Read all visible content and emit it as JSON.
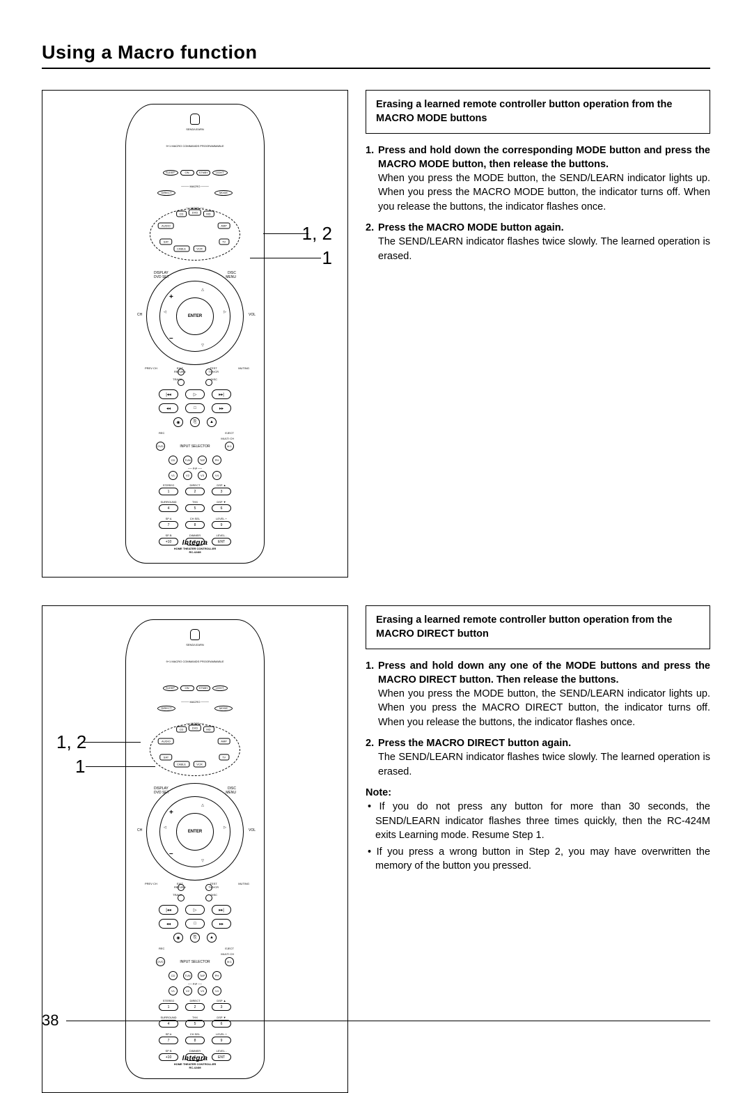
{
  "page_title": "Using a Macro function",
  "page_number": "38",
  "sections": [
    {
      "heading": "Erasing a learned remote controller button operation from the MACRO MODE buttons",
      "steps": [
        {
          "num": "1.",
          "head": "Press and hold down the corresponding MODE button and press the MACRO MODE button, then release the buttons.",
          "body": "When you press the MODE button, the SEND/LEARN indicator lights up. When you press the MACRO MODE button, the indicator turns off. When you release the buttons, the indicator flashes once."
        },
        {
          "num": "2.",
          "head": "Press the MACRO MODE button again.",
          "body": "The SEND/LEARN indicator flashes twice slowly. The learned operation is erased."
        }
      ],
      "callouts": {
        "upper": "1, 2",
        "lower": "1",
        "side": "right"
      }
    },
    {
      "heading": "Erasing a learned remote controller button operation from the MACRO DIRECT button",
      "steps": [
        {
          "num": "1.",
          "head": "Press and hold down any one of the MODE buttons and press the MACRO DIRECT button. Then release the buttons.",
          "body": "When you press the MODE button, the SEND/LEARN indicator lights up. When you press the MACRO DIRECT button, the indicator turns off. When you release the buttons, the indicator flashes once."
        },
        {
          "num": "2.",
          "head": "Press the MACRO DIRECT button again.",
          "body": "The SEND/LEARN indicator flashes twice slowly. The learned operation is erased."
        }
      ],
      "note_label": "Note:",
      "notes": [
        "If you do not press any button for more than 30 seconds, the SEND/LEARN indicator flashes three times quickly, then the RC-424M exits Learning mode. Resume Step 1.",
        "If you press a wrong button in Step 2, you may have overwritten the memory of the button you pressed."
      ],
      "callouts": {
        "upper": "1, 2",
        "lower": "1",
        "side": "left"
      }
    }
  ],
  "remote": {
    "send_learn": "SEND/LEARN",
    "prog": "9+1 MACRO COMMANDS PROGRAMMABLE",
    "top_row": [
      "SLEEP",
      "ON",
      "STNBY",
      "LIGHT"
    ],
    "macro_label": "MACRO",
    "macro_row": [
      "DIRECT",
      "MODE"
    ],
    "mode_label": "MODE",
    "mode_tabs_top": [
      "CD",
      "DVD",
      "MD"
    ],
    "mode_tabs_side": [
      "AUDIO",
      "AMP"
    ],
    "mode_tabs_bot": [
      "CABLE",
      "VCR"
    ],
    "mode_tabs_lr": [
      "SAT",
      "TV"
    ],
    "nav_tl": "DISPLAY\nDVD SET",
    "nav_tr": "DISC\nMENU",
    "nav_l": "CH",
    "nav_r": "VOL",
    "nav_plus": "+",
    "nav_minus": "–",
    "enter": "ENTER",
    "belownav": [
      "PREV CH",
      "EXIT\nRETURN",
      "TEST\nTV/VCR",
      "MUTING"
    ],
    "track_disc": [
      "TRACK",
      "DISC"
    ],
    "rec": "REC",
    "eject": "EJECT",
    "multi_ch": "MULTI CH",
    "input_selector": "INPUT SELECTOR",
    "sel_rows": [
      [
        "DVD",
        "",
        "M.1"
      ],
      [
        "CD",
        "TUN",
        "TAP",
        "PH"
      ],
      [
        "V1",
        "V2",
        "V3",
        "V4"
      ]
    ],
    "pip": "PIP",
    "keypad_labels": [
      [
        "STEREO",
        "DIRECT",
        "DSP ▲"
      ],
      [
        "SURROUND",
        "THX",
        "DSP ▼"
      ],
      [
        "SP A",
        "CH SEL",
        "LEVEL +"
      ],
      [
        "SP B",
        "DIMMER",
        "LEVEL -"
      ]
    ],
    "keypad_nums": [
      [
        "1",
        "2",
        "3"
      ],
      [
        "4",
        "5",
        "6"
      ],
      [
        "7",
        "8",
        "9"
      ],
      [
        "+10",
        "0",
        "ENT"
      ]
    ],
    "brand": "Integra",
    "brand_sub1": "HOME THEATER CONTROLLER",
    "brand_sub2": "RC-424M"
  }
}
